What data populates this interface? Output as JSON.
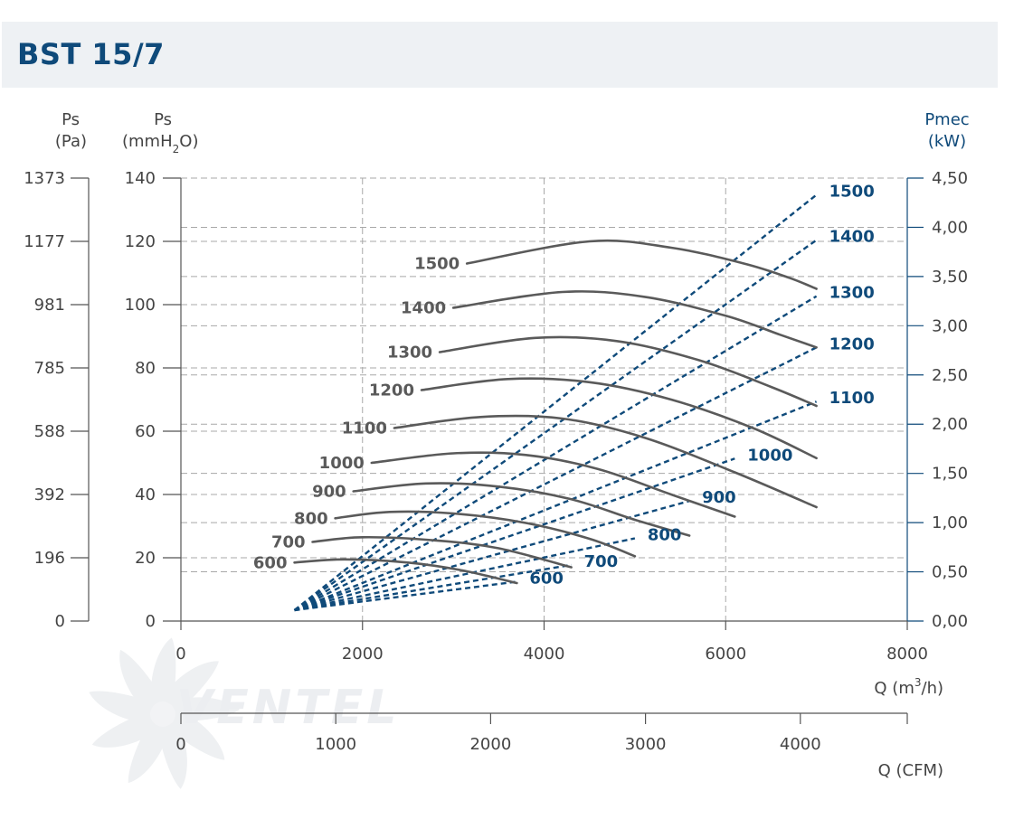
{
  "title": "BST 15/7",
  "colors": {
    "title": "#0f4a7a",
    "pressure_curves": "#5a5a5a",
    "power_curves": "#0f4a7a",
    "grid": "#a8a8a8",
    "header_bg": "#eef1f4"
  },
  "axes": {
    "ps_pa": {
      "label1": "Ps",
      "label2": "(Pa)",
      "ticks": [
        "0",
        "196",
        "392",
        "588",
        "785",
        "981",
        "1177",
        "1373"
      ]
    },
    "ps_mmh2o": {
      "label1": "Ps",
      "label2_pre": "(mmH",
      "label2_sub": "2",
      "label2_post": "O)",
      "ticks": [
        "0",
        "20",
        "40",
        "60",
        "80",
        "100",
        "120",
        "140"
      ]
    },
    "pmec": {
      "label1": "Pmec",
      "label2": "(kW)",
      "ticks": [
        "0,00",
        "0,50",
        "1,00",
        "1,50",
        "2,00",
        "2,50",
        "3,00",
        "3,50",
        "4,00",
        "4,50"
      ]
    },
    "q_m3h": {
      "label_pre": "Q (m",
      "label_sup": "3",
      "label_post": "/h)",
      "ticks": [
        "0",
        "2000",
        "4000",
        "6000",
        "8000"
      ]
    },
    "q_cfm": {
      "label": "Q (CFM)",
      "ticks": [
        "0",
        "1000",
        "2000",
        "3000",
        "4000"
      ]
    }
  },
  "watermark": "VENTEL",
  "chart_data": {
    "type": "line",
    "title": "BST 15/7",
    "xlabel": "Q (m3/h)",
    "ylabel": "Ps (mmH2O)",
    "y2label": "Pmec (kW)",
    "xlim": [
      0,
      8000
    ],
    "ylim": [
      0,
      140
    ],
    "y2lim": [
      0,
      4.5
    ],
    "grid": true,
    "pressure_series": [
      {
        "name": "600",
        "x": [
          1250,
          1800,
          2500,
          3100,
          3700
        ],
        "y": [
          18.5,
          19.5,
          18.5,
          16,
          12
        ]
      },
      {
        "name": "700",
        "x": [
          1450,
          2000,
          2800,
          3500,
          4300
        ],
        "y": [
          25,
          26.5,
          25.5,
          23,
          17
        ]
      },
      {
        "name": "800",
        "x": [
          1700,
          2300,
          3000,
          3800,
          4500,
          5000
        ],
        "y": [
          32.5,
          34.5,
          34,
          31,
          26,
          20.5
        ]
      },
      {
        "name": "900",
        "x": [
          1900,
          2700,
          3500,
          4300,
          5000,
          5600
        ],
        "y": [
          41,
          43.5,
          42.5,
          38.5,
          32,
          27
        ]
      },
      {
        "name": "1000",
        "x": [
          2100,
          3000,
          3800,
          4600,
          5400,
          6100
        ],
        "y": [
          50,
          53,
          52.5,
          48,
          40,
          33
        ]
      },
      {
        "name": "1100",
        "x": [
          2350,
          3300,
          4200,
          5100,
          6100,
          7000
        ],
        "y": [
          61,
          64.5,
          64,
          58,
          47,
          36
        ]
      },
      {
        "name": "1200",
        "x": [
          2650,
          3600,
          4500,
          5400,
          6300,
          7000
        ],
        "y": [
          73,
          76.5,
          75.5,
          70,
          61,
          51.5
        ]
      },
      {
        "name": "1300",
        "x": [
          2850,
          3900,
          4800,
          5700,
          6500,
          7000
        ],
        "y": [
          85,
          89.5,
          88.5,
          82.5,
          74,
          68
        ]
      },
      {
        "name": "1400",
        "x": [
          3000,
          4200,
          5100,
          6000,
          6600,
          7000
        ],
        "y": [
          99,
          104,
          102.5,
          96.5,
          90.5,
          86.5
        ]
      },
      {
        "name": "1500",
        "x": [
          3150,
          4500,
          5400,
          6200,
          6700,
          7000
        ],
        "y": [
          113,
          120,
          118,
          113,
          108.5,
          105
        ]
      }
    ],
    "power_series": [
      {
        "name": "600",
        "x": [
          1250,
          3700
        ],
        "y": [
          0.11,
          0.4
        ]
      },
      {
        "name": "700",
        "x": [
          1250,
          4300
        ],
        "y": [
          0.11,
          0.57
        ]
      },
      {
        "name": "800",
        "x": [
          1250,
          5000
        ],
        "y": [
          0.11,
          0.84
        ]
      },
      {
        "name": "900",
        "x": [
          1250,
          5600
        ],
        "y": [
          0.11,
          1.22
        ]
      },
      {
        "name": "1000",
        "x": [
          1250,
          6100
        ],
        "y": [
          0.11,
          1.65
        ]
      },
      {
        "name": "1100",
        "x": [
          1250,
          7000
        ],
        "y": [
          0.11,
          2.23
        ]
      },
      {
        "name": "1200",
        "x": [
          1250,
          7000
        ],
        "y": [
          0.11,
          2.78
        ]
      },
      {
        "name": "1300",
        "x": [
          1250,
          7000
        ],
        "y": [
          0.11,
          3.3
        ]
      },
      {
        "name": "1400",
        "x": [
          1250,
          7000
        ],
        "y": [
          0.11,
          3.87
        ]
      },
      {
        "name": "1500",
        "x": [
          1250,
          7000
        ],
        "y": [
          0.11,
          4.33
        ]
      }
    ],
    "pressure_labels": [
      "600",
      "700",
      "800",
      "900",
      "1000",
      "1100",
      "1200",
      "1300",
      "1400",
      "1500"
    ],
    "power_labels": [
      "600",
      "700",
      "800",
      "900",
      "1000",
      "1100",
      "1200",
      "1300",
      "1400",
      "1500"
    ]
  }
}
